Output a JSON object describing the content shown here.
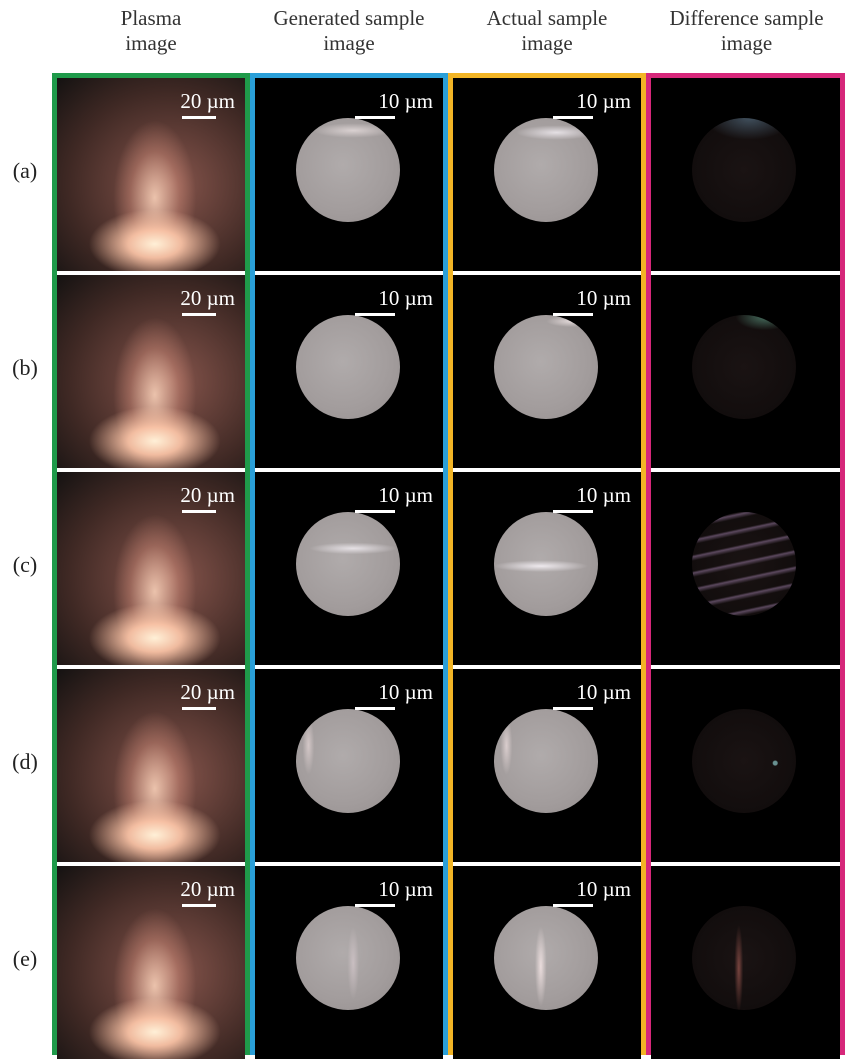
{
  "columns": [
    {
      "title": "Plasma\nimage",
      "border_color": "#1f9a4a",
      "scale": "20 µm"
    },
    {
      "title": "Generated sample\nimage",
      "border_color": "#2a9fd8",
      "scale": "10 µm"
    },
    {
      "title": "Actual sample\nimage",
      "border_color": "#f2b526",
      "scale": "10 µm"
    },
    {
      "title": "Difference sample\nimage",
      "border_color": "#d6277a",
      "scale": ""
    }
  ],
  "rows": [
    {
      "label": "(a)"
    },
    {
      "label": "(b)"
    },
    {
      "label": "(c)"
    },
    {
      "label": "(d)"
    },
    {
      "label": "(e)"
    }
  ]
}
